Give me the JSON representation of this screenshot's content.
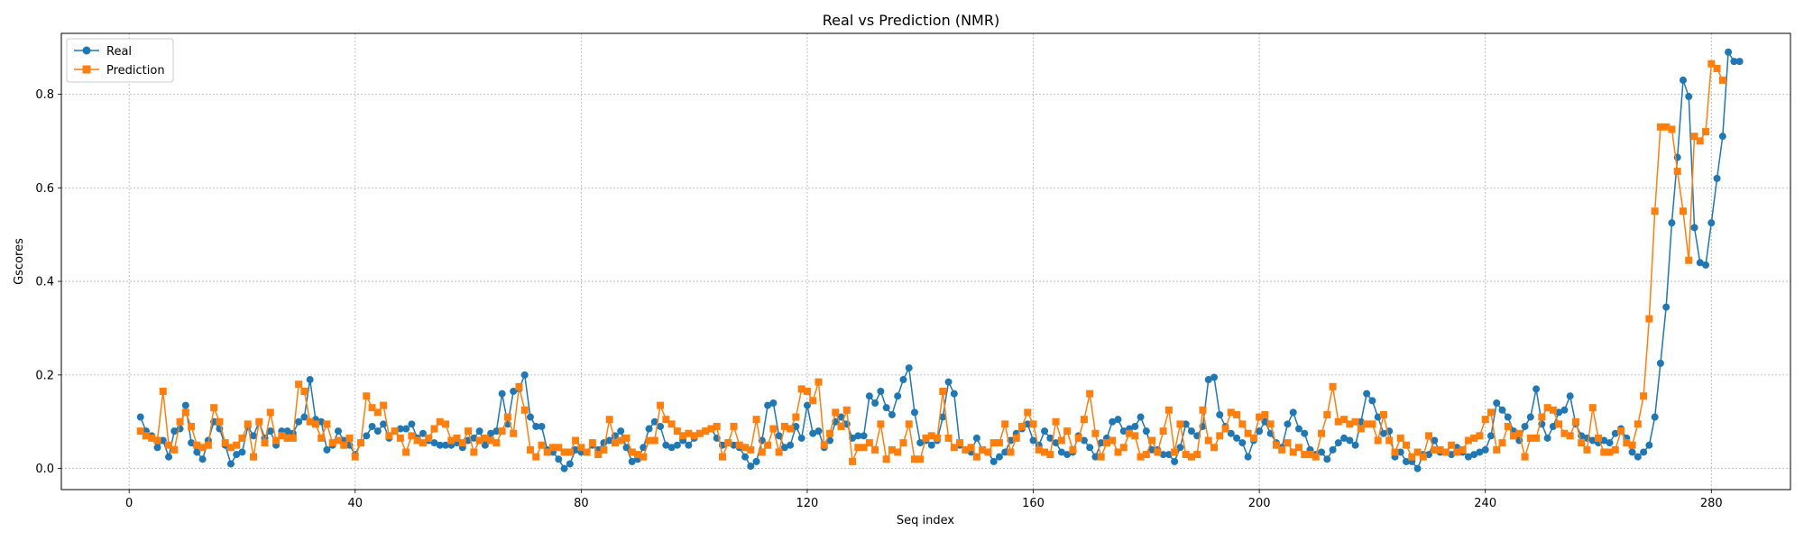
{
  "chart_data": {
    "type": "line",
    "title": "Real vs Prediction (NMR)",
    "xlabel": "Seq index",
    "ylabel": "Gscores",
    "xlim": [
      -12,
      294
    ],
    "ylim": [
      -0.045,
      0.93
    ],
    "x_ticks": [
      0,
      40,
      80,
      120,
      160,
      200,
      240,
      280
    ],
    "y_ticks": [
      0.0,
      0.2,
      0.4,
      0.6,
      0.8
    ],
    "grid": true,
    "legend_position": "top-left",
    "x_start": 2,
    "series": [
      {
        "name": "Real",
        "color": "#1f77b4",
        "marker": "circle",
        "values": [
          0.11,
          0.08,
          0.07,
          0.045,
          0.06,
          0.025,
          0.08,
          0.085,
          0.135,
          0.055,
          0.035,
          0.02,
          0.06,
          0.1,
          0.085,
          0.05,
          0.01,
          0.03,
          0.035,
          0.09,
          0.07,
          0.1,
          0.065,
          0.08,
          0.05,
          0.08,
          0.08,
          0.075,
          0.1,
          0.11,
          0.19,
          0.105,
          0.1,
          0.04,
          0.05,
          0.08,
          0.06,
          0.05,
          0.03,
          0.055,
          0.07,
          0.09,
          0.08,
          0.095,
          0.065,
          0.08,
          0.085,
          0.085,
          0.095,
          0.065,
          0.075,
          0.06,
          0.055,
          0.05,
          0.05,
          0.05,
          0.055,
          0.045,
          0.06,
          0.065,
          0.08,
          0.05,
          0.075,
          0.08,
          0.16,
          0.095,
          0.165,
          0.17,
          0.2,
          0.11,
          0.09,
          0.09,
          0.04,
          0.035,
          0.02,
          0.0,
          0.01,
          0.04,
          0.035,
          0.035,
          0.05,
          0.04,
          0.055,
          0.06,
          0.07,
          0.08,
          0.045,
          0.015,
          0.02,
          0.045,
          0.085,
          0.1,
          0.09,
          0.05,
          0.045,
          0.05,
          0.06,
          0.05,
          0.065,
          0.075,
          0.08,
          0.085,
          0.065,
          0.05,
          0.055,
          0.05,
          0.045,
          0.025,
          0.005,
          0.015,
          0.06,
          0.135,
          0.14,
          0.07,
          0.045,
          0.05,
          0.09,
          0.065,
          0.135,
          0.075,
          0.08,
          0.045,
          0.06,
          0.1,
          0.11,
          0.095,
          0.065,
          0.07,
          0.07,
          0.155,
          0.14,
          0.165,
          0.13,
          0.115,
          0.155,
          0.19,
          0.215,
          0.12,
          0.055,
          0.06,
          0.05,
          0.06,
          0.11,
          0.185,
          0.16,
          0.05,
          0.04,
          0.035,
          0.065,
          0.04,
          0.035,
          0.015,
          0.025,
          0.035,
          0.06,
          0.075,
          0.085,
          0.095,
          0.06,
          0.05,
          0.08,
          0.065,
          0.055,
          0.035,
          0.03,
          0.035,
          0.07,
          0.06,
          0.045,
          0.025,
          0.055,
          0.065,
          0.1,
          0.105,
          0.08,
          0.085,
          0.09,
          0.11,
          0.08,
          0.04,
          0.04,
          0.03,
          0.03,
          0.015,
          0.045,
          0.095,
          0.08,
          0.07,
          0.09,
          0.19,
          0.195,
          0.115,
          0.09,
          0.075,
          0.065,
          0.055,
          0.025,
          0.06,
          0.08,
          0.1,
          0.075,
          0.055,
          0.045,
          0.095,
          0.12,
          0.085,
          0.075,
          0.04,
          0.03,
          0.035,
          0.02,
          0.04,
          0.055,
          0.065,
          0.06,
          0.05,
          0.1,
          0.16,
          0.145,
          0.11,
          0.075,
          0.08,
          0.025,
          0.035,
          0.015,
          0.015,
          0.0,
          0.03,
          0.03,
          0.06,
          0.035,
          0.035,
          0.03,
          0.045,
          0.035,
          0.025,
          0.03,
          0.035,
          0.04,
          0.07,
          0.14,
          0.125,
          0.11,
          0.08,
          0.06,
          0.09,
          0.11,
          0.17,
          0.095,
          0.065,
          0.09,
          0.12,
          0.125,
          0.155,
          0.095,
          0.07,
          0.065,
          0.06,
          0.055,
          0.06,
          0.055,
          0.075,
          0.085,
          0.065,
          0.035,
          0.025,
          0.035,
          0.05,
          0.11,
          0.225,
          0.345,
          0.525,
          0.665,
          0.83,
          0.795,
          0.515,
          0.44,
          0.435,
          0.525,
          0.62,
          0.71,
          0.89,
          0.87,
          0.87
        ]
      },
      {
        "name": "Prediction",
        "color": "#ff7f0e",
        "marker": "square",
        "values": [
          0.08,
          0.07,
          0.065,
          0.06,
          0.165,
          0.05,
          0.04,
          0.1,
          0.12,
          0.09,
          0.05,
          0.045,
          0.05,
          0.13,
          0.1,
          0.055,
          0.045,
          0.05,
          0.065,
          0.095,
          0.025,
          0.1,
          0.055,
          0.12,
          0.06,
          0.07,
          0.065,
          0.065,
          0.18,
          0.165,
          0.1,
          0.095,
          0.065,
          0.095,
          0.055,
          0.06,
          0.05,
          0.065,
          0.025,
          0.055,
          0.155,
          0.13,
          0.12,
          0.135,
          0.07,
          0.08,
          0.065,
          0.035,
          0.07,
          0.06,
          0.055,
          0.065,
          0.085,
          0.1,
          0.095,
          0.06,
          0.065,
          0.055,
          0.08,
          0.035,
          0.06,
          0.065,
          0.06,
          0.055,
          0.08,
          0.11,
          0.075,
          0.175,
          0.125,
          0.04,
          0.025,
          0.05,
          0.035,
          0.045,
          0.045,
          0.035,
          0.035,
          0.06,
          0.045,
          0.035,
          0.055,
          0.03,
          0.04,
          0.105,
          0.055,
          0.06,
          0.065,
          0.035,
          0.03,
          0.025,
          0.06,
          0.06,
          0.135,
          0.105,
          0.095,
          0.08,
          0.07,
          0.075,
          0.07,
          0.075,
          0.08,
          0.085,
          0.09,
          0.025,
          0.055,
          0.09,
          0.05,
          0.045,
          0.04,
          0.105,
          0.035,
          0.05,
          0.085,
          0.035,
          0.09,
          0.085,
          0.11,
          0.17,
          0.165,
          0.145,
          0.185,
          0.05,
          0.075,
          0.12,
          0.09,
          0.125,
          0.015,
          0.045,
          0.045,
          0.055,
          0.04,
          0.095,
          0.02,
          0.04,
          0.035,
          0.055,
          0.095,
          0.02,
          0.02,
          0.065,
          0.07,
          0.065,
          0.165,
          0.065,
          0.045,
          0.055,
          0.04,
          0.045,
          0.025,
          0.04,
          0.035,
          0.055,
          0.055,
          0.095,
          0.035,
          0.065,
          0.09,
          0.12,
          0.095,
          0.04,
          0.035,
          0.03,
          0.1,
          0.06,
          0.08,
          0.04,
          0.065,
          0.105,
          0.16,
          0.075,
          0.025,
          0.055,
          0.06,
          0.035,
          0.045,
          0.075,
          0.07,
          0.025,
          0.03,
          0.06,
          0.035,
          0.08,
          0.125,
          0.035,
          0.095,
          0.03,
          0.025,
          0.03,
          0.125,
          0.06,
          0.045,
          0.07,
          0.085,
          0.12,
          0.115,
          0.095,
          0.075,
          0.065,
          0.11,
          0.115,
          0.095,
          0.05,
          0.04,
          0.055,
          0.035,
          0.045,
          0.03,
          0.03,
          0.025,
          0.075,
          0.115,
          0.175,
          0.1,
          0.105,
          0.095,
          0.1,
          0.085,
          0.095,
          0.095,
          0.06,
          0.115,
          0.06,
          0.035,
          0.065,
          0.05,
          0.025,
          0.035,
          0.025,
          0.07,
          0.04,
          0.04,
          0.035,
          0.05,
          0.035,
          0.04,
          0.06,
          0.065,
          0.07,
          0.105,
          0.12,
          0.04,
          0.055,
          0.09,
          0.07,
          0.075,
          0.025,
          0.065,
          0.065,
          0.11,
          0.13,
          0.125,
          0.095,
          0.075,
          0.07,
          0.1,
          0.055,
          0.04,
          0.13,
          0.065,
          0.035,
          0.035,
          0.04,
          0.08,
          0.055,
          0.05,
          0.095,
          0.155,
          0.32,
          0.55,
          0.73,
          0.73,
          0.725,
          0.635,
          0.55,
          0.445,
          0.71,
          0.7,
          0.72,
          0.865,
          0.855,
          0.83
        ]
      }
    ]
  }
}
